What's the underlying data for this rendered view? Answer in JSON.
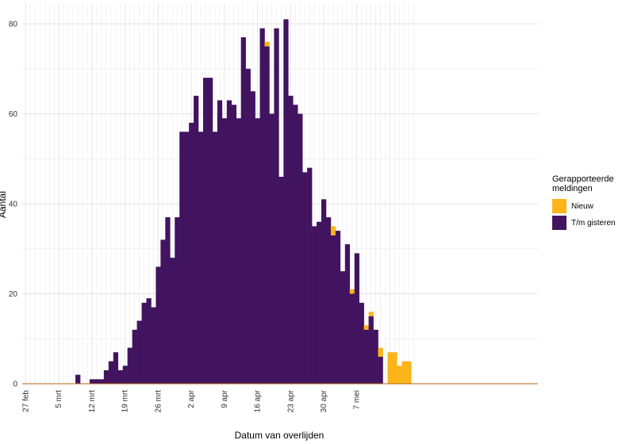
{
  "chart_data": {
    "type": "bar",
    "stacked": true,
    "xlabel": "Datum van overlijden",
    "ylabel": "Aantal",
    "ylim": [
      0,
      85
    ],
    "y_ticks": [
      0,
      20,
      40,
      60,
      80
    ],
    "x_start_date": "27 feb",
    "x_tick_labels": [
      "27 feb",
      "5 mrt",
      "12 mrt",
      "19 mrt",
      "26 mrt",
      "2 apr",
      "9 apr",
      "16 apr",
      "23 apr",
      "30 apr",
      "7 mei"
    ],
    "x_tick_every_days": 7,
    "grid": true,
    "legend": {
      "title": "Gerapporteerde meldingen",
      "title_lines": [
        "Gerapporteerde",
        "meldingen"
      ],
      "position": "right"
    },
    "series": [
      {
        "name": "Nieuw",
        "color": "#FBB41A",
        "values": [
          0,
          0,
          0,
          0,
          0,
          0,
          0,
          0,
          0,
          0,
          0,
          0,
          0,
          0,
          0,
          0,
          0,
          0,
          0,
          0,
          0,
          0,
          0,
          0,
          0,
          0,
          0,
          0,
          0,
          0,
          0,
          0,
          0,
          0,
          0,
          0,
          0,
          0,
          0,
          0,
          0,
          0,
          0,
          0,
          0,
          0,
          0,
          0,
          0,
          0,
          0,
          1,
          0,
          0,
          0,
          0,
          0,
          0,
          0,
          0,
          0,
          0,
          0,
          0,
          0,
          2,
          0,
          0,
          0,
          1,
          0,
          0,
          1,
          1,
          0,
          2,
          0,
          7,
          7,
          4,
          5,
          5
        ]
      },
      {
        "name": "T/m gisteren",
        "color": "#42145F",
        "values": [
          0,
          0,
          0,
          0,
          0,
          0,
          0,
          0,
          0,
          0,
          0,
          2,
          0,
          0,
          1,
          1,
          1,
          3,
          5,
          7,
          3,
          4,
          8,
          12,
          14,
          18,
          19,
          17,
          26,
          32,
          37,
          28,
          37,
          56,
          56,
          58,
          64,
          56,
          68,
          68,
          56,
          63,
          59,
          63,
          62,
          59,
          77,
          70,
          65,
          59,
          79,
          75,
          60,
          79,
          46,
          81,
          64,
          62,
          60,
          47,
          48,
          35,
          36,
          41,
          37,
          33,
          34,
          25,
          31,
          20,
          29,
          18,
          12,
          15,
          12,
          6,
          0,
          0,
          0,
          0,
          0,
          0
        ]
      }
    ]
  }
}
